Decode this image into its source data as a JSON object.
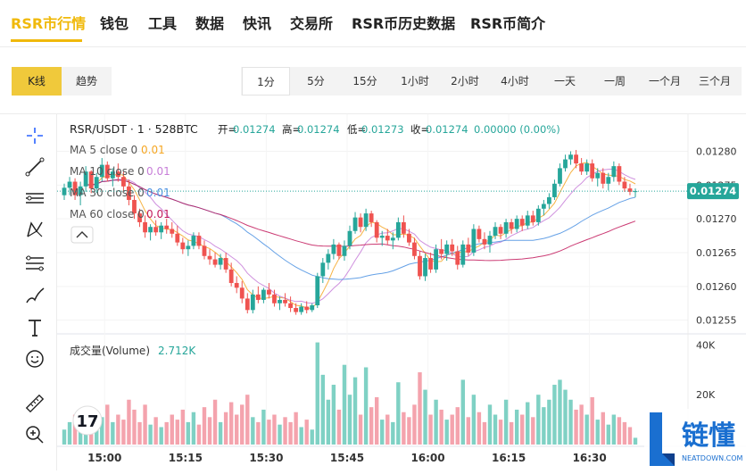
{
  "nav": {
    "items": [
      {
        "label": "RSR市行情",
        "active": true
      },
      {
        "label": "钱包"
      },
      {
        "label": "工具"
      },
      {
        "label": "数据"
      },
      {
        "label": "快讯"
      },
      {
        "label": "交易所"
      },
      {
        "label": "RSR币历史数据"
      },
      {
        "label": "RSR币简介"
      }
    ]
  },
  "view_tabs": [
    {
      "label": "K线",
      "active": true
    },
    {
      "label": "趋势"
    }
  ],
  "intervals": [
    {
      "label": "1分",
      "active": true
    },
    {
      "label": "5分"
    },
    {
      "label": "15分"
    },
    {
      "label": "1小时"
    },
    {
      "label": "2小时"
    },
    {
      "label": "4小时"
    },
    {
      "label": "一天"
    },
    {
      "label": "一周"
    },
    {
      "label": "一个月"
    },
    {
      "label": "三个月"
    }
  ],
  "toolbar": {
    "icons": [
      "crosshair-icon",
      "trend-line-icon",
      "horizontal-lines-icon",
      "pattern-icon",
      "fib-levels-icon",
      "brush-icon",
      "text-tool-icon",
      "emoji-icon",
      "ruler-icon",
      "zoom-in-icon"
    ]
  },
  "chart_header": {
    "symbol": "RSR/USDT · 1 · 528BTC",
    "open_label": "开=",
    "open": "0.01274",
    "high_label": "高=",
    "high": "0.01274",
    "low_label": "低=",
    "low": "0.01273",
    "close_label": "收=",
    "close": "0.01274",
    "change": "0.00000 (0.00%)"
  },
  "ma_legend": [
    {
      "label": "MA 5 close 0",
      "value": "0.01",
      "color": "#f5a623"
    },
    {
      "label": "MA 10 close 0",
      "value": "0.01",
      "color": "#c77dd8"
    },
    {
      "label": "MA 30 close 0",
      "value": "0.01",
      "color": "#4a90e2"
    },
    {
      "label": "MA 60 close 0",
      "value": "0.01",
      "color": "#c2185b"
    }
  ],
  "colors": {
    "up": "#26a69a",
    "down": "#ef5350",
    "vol_up": "#7fd1c4",
    "vol_down": "#f4a3ad",
    "last_price": "#26a69a"
  },
  "volume_header": {
    "label": "成交量(Volume)",
    "value": "2.712K"
  },
  "last_price_badge": "0.01274",
  "tradingview_logo": "17",
  "watermark": {
    "main": "链懂",
    "sub": "NEATDOWN.COM"
  },
  "chart_data": {
    "type": "candlestick",
    "y_ticks": [
      "0.01280",
      "0.01275",
      "0.01270",
      "0.01265",
      "0.01260",
      "0.01255"
    ],
    "y_tick_values": [
      0.0128,
      0.01275,
      0.0127,
      0.01265,
      0.0126,
      0.01255
    ],
    "ylim": [
      0.012535,
      0.012835
    ],
    "volume_ticks": [
      "40K",
      "20K"
    ],
    "volume_tick_values": [
      40000,
      20000
    ],
    "volume_ylim": [
      0,
      43000
    ],
    "x_ticks": [
      "15:00",
      "15:15",
      "15:30",
      "15:45",
      "16:00",
      "16:15",
      "16:30"
    ],
    "x_tick_index": [
      7.5,
      22.5,
      37.5,
      52.5,
      67.5,
      82.5,
      97.5
    ],
    "candles": [
      {
        "o": 0.012735,
        "h": 0.012752,
        "l": 0.012728,
        "c": 0.012746,
        "v": 6000
      },
      {
        "o": 0.012746,
        "h": 0.012762,
        "l": 0.012735,
        "c": 0.012755,
        "v": 9000
      },
      {
        "o": 0.012755,
        "h": 0.01276,
        "l": 0.012728,
        "c": 0.012735,
        "v": 12000
      },
      {
        "o": 0.012735,
        "h": 0.012755,
        "l": 0.01272,
        "c": 0.012748,
        "v": 8000
      },
      {
        "o": 0.012748,
        "h": 0.012778,
        "l": 0.01274,
        "c": 0.01277,
        "v": 14000
      },
      {
        "o": 0.01277,
        "h": 0.012772,
        "l": 0.012738,
        "c": 0.012745,
        "v": 10000
      },
      {
        "o": 0.012745,
        "h": 0.012768,
        "l": 0.012738,
        "c": 0.012762,
        "v": 7000
      },
      {
        "o": 0.012762,
        "h": 0.01279,
        "l": 0.012755,
        "c": 0.01278,
        "v": 11000
      },
      {
        "o": 0.01278,
        "h": 0.012785,
        "l": 0.012755,
        "c": 0.01276,
        "v": 16000
      },
      {
        "o": 0.01276,
        "h": 0.012775,
        "l": 0.012748,
        "c": 0.01277,
        "v": 9000
      },
      {
        "o": 0.01277,
        "h": 0.012782,
        "l": 0.012755,
        "c": 0.012762,
        "v": 12000
      },
      {
        "o": 0.012762,
        "h": 0.01277,
        "l": 0.01274,
        "c": 0.012748,
        "v": 10000
      },
      {
        "o": 0.012748,
        "h": 0.012758,
        "l": 0.01272,
        "c": 0.012728,
        "v": 18000
      },
      {
        "o": 0.012728,
        "h": 0.012735,
        "l": 0.0127,
        "c": 0.012708,
        "v": 14000
      },
      {
        "o": 0.012708,
        "h": 0.012715,
        "l": 0.012688,
        "c": 0.012695,
        "v": 9000
      },
      {
        "o": 0.012695,
        "h": 0.012705,
        "l": 0.012672,
        "c": 0.01268,
        "v": 16000
      },
      {
        "o": 0.01268,
        "h": 0.012692,
        "l": 0.012668,
        "c": 0.012688,
        "v": 8000
      },
      {
        "o": 0.012688,
        "h": 0.012698,
        "l": 0.012675,
        "c": 0.01268,
        "v": 11000
      },
      {
        "o": 0.01268,
        "h": 0.012695,
        "l": 0.01267,
        "c": 0.01269,
        "v": 7000
      },
      {
        "o": 0.01269,
        "h": 0.0127,
        "l": 0.012678,
        "c": 0.012685,
        "v": 9000
      },
      {
        "o": 0.012685,
        "h": 0.012695,
        "l": 0.012672,
        "c": 0.012678,
        "v": 12000
      },
      {
        "o": 0.012678,
        "h": 0.01269,
        "l": 0.01266,
        "c": 0.012665,
        "v": 10000
      },
      {
        "o": 0.012665,
        "h": 0.012672,
        "l": 0.012648,
        "c": 0.012655,
        "v": 14000
      },
      {
        "o": 0.012655,
        "h": 0.012668,
        "l": 0.012645,
        "c": 0.01266,
        "v": 9000
      },
      {
        "o": 0.01266,
        "h": 0.01268,
        "l": 0.012655,
        "c": 0.012675,
        "v": 13000
      },
      {
        "o": 0.012675,
        "h": 0.01268,
        "l": 0.012655,
        "c": 0.01266,
        "v": 8000
      },
      {
        "o": 0.01266,
        "h": 0.012668,
        "l": 0.01264,
        "c": 0.012645,
        "v": 15000
      },
      {
        "o": 0.012645,
        "h": 0.012655,
        "l": 0.012632,
        "c": 0.01264,
        "v": 11000
      },
      {
        "o": 0.01264,
        "h": 0.01265,
        "l": 0.012628,
        "c": 0.012632,
        "v": 18000
      },
      {
        "o": 0.012632,
        "h": 0.012648,
        "l": 0.012625,
        "c": 0.012642,
        "v": 9000
      },
      {
        "o": 0.012642,
        "h": 0.01265,
        "l": 0.01262,
        "c": 0.012625,
        "v": 13000
      },
      {
        "o": 0.012625,
        "h": 0.012635,
        "l": 0.0126,
        "c": 0.012605,
        "v": 17000
      },
      {
        "o": 0.012605,
        "h": 0.012615,
        "l": 0.01259,
        "c": 0.012598,
        "v": 12000
      },
      {
        "o": 0.012598,
        "h": 0.012608,
        "l": 0.012575,
        "c": 0.012582,
        "v": 16000
      },
      {
        "o": 0.012582,
        "h": 0.01259,
        "l": 0.01256,
        "c": 0.012565,
        "v": 20000
      },
      {
        "o": 0.012565,
        "h": 0.012595,
        "l": 0.01256,
        "c": 0.012588,
        "v": 11000
      },
      {
        "o": 0.012588,
        "h": 0.0126,
        "l": 0.012575,
        "c": 0.01258,
        "v": 9000
      },
      {
        "o": 0.01258,
        "h": 0.012598,
        "l": 0.012575,
        "c": 0.012595,
        "v": 14000
      },
      {
        "o": 0.012595,
        "h": 0.012605,
        "l": 0.012582,
        "c": 0.012588,
        "v": 10000
      },
      {
        "o": 0.012588,
        "h": 0.012595,
        "l": 0.01257,
        "c": 0.012575,
        "v": 12000
      },
      {
        "o": 0.012575,
        "h": 0.012585,
        "l": 0.012565,
        "c": 0.01258,
        "v": 8000
      },
      {
        "o": 0.01258,
        "h": 0.01259,
        "l": 0.01257,
        "c": 0.012575,
        "v": 11000
      },
      {
        "o": 0.012575,
        "h": 0.012585,
        "l": 0.012562,
        "c": 0.012568,
        "v": 9000
      },
      {
        "o": 0.012568,
        "h": 0.012575,
        "l": 0.012558,
        "c": 0.012562,
        "v": 13000
      },
      {
        "o": 0.012562,
        "h": 0.012575,
        "l": 0.012558,
        "c": 0.01257,
        "v": 7000
      },
      {
        "o": 0.01257,
        "h": 0.012578,
        "l": 0.01256,
        "c": 0.012565,
        "v": 10000
      },
      {
        "o": 0.012565,
        "h": 0.012575,
        "l": 0.012562,
        "c": 0.012572,
        "v": 6000
      },
      {
        "o": 0.012572,
        "h": 0.01262,
        "l": 0.012568,
        "c": 0.012615,
        "v": 41000
      },
      {
        "o": 0.012615,
        "h": 0.012642,
        "l": 0.012605,
        "c": 0.012635,
        "v": 28000
      },
      {
        "o": 0.012635,
        "h": 0.012655,
        "l": 0.012625,
        "c": 0.012648,
        "v": 18000
      },
      {
        "o": 0.012648,
        "h": 0.01267,
        "l": 0.01264,
        "c": 0.012662,
        "v": 24000
      },
      {
        "o": 0.012662,
        "h": 0.012665,
        "l": 0.01264,
        "c": 0.012645,
        "v": 14000
      },
      {
        "o": 0.012645,
        "h": 0.012668,
        "l": 0.012638,
        "c": 0.01266,
        "v": 32000
      },
      {
        "o": 0.01266,
        "h": 0.01269,
        "l": 0.012655,
        "c": 0.012682,
        "v": 20000
      },
      {
        "o": 0.012682,
        "h": 0.01271,
        "l": 0.012678,
        "c": 0.012702,
        "v": 27000
      },
      {
        "o": 0.012702,
        "h": 0.012708,
        "l": 0.01268,
        "c": 0.012688,
        "v": 12000
      },
      {
        "o": 0.012688,
        "h": 0.012715,
        "l": 0.012682,
        "c": 0.012708,
        "v": 31000
      },
      {
        "o": 0.012708,
        "h": 0.012712,
        "l": 0.012688,
        "c": 0.012695,
        "v": 15000
      },
      {
        "o": 0.012695,
        "h": 0.012698,
        "l": 0.012665,
        "c": 0.012672,
        "v": 19000
      },
      {
        "o": 0.012672,
        "h": 0.012682,
        "l": 0.01266,
        "c": 0.012675,
        "v": 10000
      },
      {
        "o": 0.012675,
        "h": 0.012685,
        "l": 0.012662,
        "c": 0.012668,
        "v": 12000
      },
      {
        "o": 0.012668,
        "h": 0.01268,
        "l": 0.012655,
        "c": 0.012672,
        "v": 9000
      },
      {
        "o": 0.012672,
        "h": 0.012702,
        "l": 0.012668,
        "c": 0.012695,
        "v": 25000
      },
      {
        "o": 0.012695,
        "h": 0.012705,
        "l": 0.012672,
        "c": 0.012678,
        "v": 13000
      },
      {
        "o": 0.012678,
        "h": 0.012685,
        "l": 0.01266,
        "c": 0.012665,
        "v": 11000
      },
      {
        "o": 0.012665,
        "h": 0.012672,
        "l": 0.01264,
        "c": 0.012645,
        "v": 16000
      },
      {
        "o": 0.012645,
        "h": 0.012652,
        "l": 0.01261,
        "c": 0.012615,
        "v": 29000
      },
      {
        "o": 0.012615,
        "h": 0.012648,
        "l": 0.012608,
        "c": 0.012642,
        "v": 22000
      },
      {
        "o": 0.012642,
        "h": 0.01265,
        "l": 0.01262,
        "c": 0.012625,
        "v": 12000
      },
      {
        "o": 0.012625,
        "h": 0.012662,
        "l": 0.01262,
        "c": 0.012655,
        "v": 18000
      },
      {
        "o": 0.012655,
        "h": 0.01267,
        "l": 0.01264,
        "c": 0.012648,
        "v": 14000
      },
      {
        "o": 0.012648,
        "h": 0.012668,
        "l": 0.012638,
        "c": 0.012662,
        "v": 10000
      },
      {
        "o": 0.012662,
        "h": 0.01267,
        "l": 0.012645,
        "c": 0.012652,
        "v": 12000
      },
      {
        "o": 0.012652,
        "h": 0.01266,
        "l": 0.012625,
        "c": 0.012632,
        "v": 15000
      },
      {
        "o": 0.012632,
        "h": 0.012668,
        "l": 0.012628,
        "c": 0.012662,
        "v": 26000
      },
      {
        "o": 0.012662,
        "h": 0.012672,
        "l": 0.012645,
        "c": 0.01265,
        "v": 11000
      },
      {
        "o": 0.01265,
        "h": 0.012692,
        "l": 0.012645,
        "c": 0.012685,
        "v": 20000
      },
      {
        "o": 0.012685,
        "h": 0.01269,
        "l": 0.012665,
        "c": 0.01267,
        "v": 13000
      },
      {
        "o": 0.01267,
        "h": 0.01268,
        "l": 0.012655,
        "c": 0.012662,
        "v": 9000
      },
      {
        "o": 0.012662,
        "h": 0.012682,
        "l": 0.01265,
        "c": 0.012675,
        "v": 16000
      },
      {
        "o": 0.012675,
        "h": 0.012695,
        "l": 0.01267,
        "c": 0.012688,
        "v": 12000
      },
      {
        "o": 0.012688,
        "h": 0.012692,
        "l": 0.01267,
        "c": 0.012678,
        "v": 10000
      },
      {
        "o": 0.012678,
        "h": 0.0127,
        "l": 0.012672,
        "c": 0.012695,
        "v": 18000
      },
      {
        "o": 0.012695,
        "h": 0.0127,
        "l": 0.012678,
        "c": 0.012685,
        "v": 9000
      },
      {
        "o": 0.012685,
        "h": 0.012705,
        "l": 0.01268,
        "c": 0.0127,
        "v": 14000
      },
      {
        "o": 0.0127,
        "h": 0.012705,
        "l": 0.012682,
        "c": 0.01269,
        "v": 12000
      },
      {
        "o": 0.01269,
        "h": 0.012712,
        "l": 0.012685,
        "c": 0.012705,
        "v": 17000
      },
      {
        "o": 0.012705,
        "h": 0.012712,
        "l": 0.01269,
        "c": 0.012695,
        "v": 11000
      },
      {
        "o": 0.012695,
        "h": 0.01272,
        "l": 0.01269,
        "c": 0.012715,
        "v": 20000
      },
      {
        "o": 0.012715,
        "h": 0.012728,
        "l": 0.012705,
        "c": 0.012722,
        "v": 15000
      },
      {
        "o": 0.012722,
        "h": 0.012738,
        "l": 0.012715,
        "c": 0.012732,
        "v": 18000
      },
      {
        "o": 0.012732,
        "h": 0.012758,
        "l": 0.012728,
        "c": 0.012752,
        "v": 24000
      },
      {
        "o": 0.012752,
        "h": 0.012782,
        "l": 0.012748,
        "c": 0.012775,
        "v": 26000
      },
      {
        "o": 0.012775,
        "h": 0.012795,
        "l": 0.01277,
        "c": 0.012788,
        "v": 22000
      },
      {
        "o": 0.012788,
        "h": 0.0128,
        "l": 0.01278,
        "c": 0.012795,
        "v": 18000
      },
      {
        "o": 0.012795,
        "h": 0.012802,
        "l": 0.012775,
        "c": 0.012782,
        "v": 14000
      },
      {
        "o": 0.012782,
        "h": 0.01279,
        "l": 0.012765,
        "c": 0.01277,
        "v": 16000
      },
      {
        "o": 0.01277,
        "h": 0.012788,
        "l": 0.012765,
        "c": 0.012782,
        "v": 12000
      },
      {
        "o": 0.012782,
        "h": 0.012788,
        "l": 0.012755,
        "c": 0.01276,
        "v": 19000
      },
      {
        "o": 0.01276,
        "h": 0.012775,
        "l": 0.012748,
        "c": 0.012768,
        "v": 10000
      },
      {
        "o": 0.012768,
        "h": 0.012775,
        "l": 0.012745,
        "c": 0.012752,
        "v": 13000
      },
      {
        "o": 0.012752,
        "h": 0.012768,
        "l": 0.012742,
        "c": 0.012762,
        "v": 8000
      },
      {
        "o": 0.012762,
        "h": 0.012785,
        "l": 0.012755,
        "c": 0.012778,
        "v": 12000
      },
      {
        "o": 0.012778,
        "h": 0.012782,
        "l": 0.01275,
        "c": 0.012755,
        "v": 11000
      },
      {
        "o": 0.012755,
        "h": 0.012762,
        "l": 0.01274,
        "c": 0.012745,
        "v": 9000
      },
      {
        "o": 0.012745,
        "h": 0.012752,
        "l": 0.012735,
        "c": 0.01274,
        "v": 7000
      },
      {
        "o": 0.01274,
        "h": 0.012745,
        "l": 0.012732,
        "c": 0.012741,
        "v": 2712
      }
    ]
  }
}
